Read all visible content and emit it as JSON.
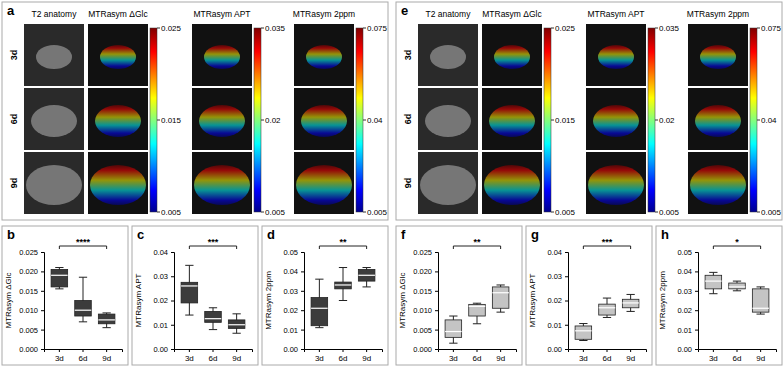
{
  "image_panels": [
    {
      "label": "a",
      "rows": [
        "3d",
        "6d",
        "9d"
      ],
      "columns": [
        {
          "title": "T2 anatomy"
        },
        {
          "title": "MTRasym ΔGlc",
          "colorbar": {
            "min": 0.005,
            "max": 0.025,
            "ticks": [
              0.005,
              0.015,
              0.025
            ]
          }
        },
        {
          "title": "MTRasym APT",
          "colorbar": {
            "min": 0.005,
            "max": 0.035,
            "ticks": [
              0.005,
              0.02,
              0.035
            ]
          }
        },
        {
          "title": "MTRasym 2ppm",
          "colorbar": {
            "min": 0.005,
            "max": 0.075,
            "ticks": [
              0.005,
              0.04,
              0.075
            ]
          }
        }
      ]
    },
    {
      "label": "e",
      "rows": [
        "3d",
        "6d",
        "9d"
      ],
      "columns": [
        {
          "title": "T2 anatomy"
        },
        {
          "title": "MTRasym ΔGlc",
          "colorbar": {
            "min": 0.005,
            "max": 0.025,
            "ticks": [
              0.005,
              0.015,
              0.025
            ]
          }
        },
        {
          "title": "MTRasym APT",
          "colorbar": {
            "min": 0.005,
            "max": 0.035,
            "ticks": [
              0.005,
              0.02,
              0.035
            ]
          }
        },
        {
          "title": "MTRasym 2ppm",
          "colorbar": {
            "min": 0.005,
            "max": 0.075,
            "ticks": [
              0.005,
              0.04,
              0.075
            ]
          }
        }
      ]
    }
  ],
  "chart_data": [
    {
      "type": "box",
      "title": "b",
      "ylabel": "MTRasym ΔGlc",
      "color": "#3c3c3c",
      "categories": [
        "3d",
        "6d",
        "9d"
      ],
      "boxes": [
        {
          "min": 0.0155,
          "q1": 0.016,
          "median": 0.019,
          "q3": 0.0205,
          "max": 0.021
        },
        {
          "min": 0.007,
          "q1": 0.0085,
          "median": 0.01,
          "q3": 0.0125,
          "max": 0.0185
        },
        {
          "min": 0.0055,
          "q1": 0.0065,
          "median": 0.0075,
          "q3": 0.009,
          "max": 0.0093
        }
      ],
      "ylim": [
        0,
        0.025
      ],
      "yticks": [
        {
          "value": 0,
          "label": "0.000"
        },
        0.005,
        {
          "value": 0.01,
          "label": "0.010"
        },
        0.015,
        {
          "value": 0.02,
          "label": "0.020"
        },
        0.025
      ],
      "significance": {
        "from": "3d",
        "to": "9d",
        "label": "****"
      }
    },
    {
      "type": "box",
      "title": "c",
      "ylabel": "MTRasym APT",
      "color": "#3c3c3c",
      "categories": [
        "3d",
        "6d",
        "9d"
      ],
      "boxes": [
        {
          "min": 0.014,
          "q1": 0.019,
          "median": 0.026,
          "q3": 0.0275,
          "max": 0.0345
        },
        {
          "min": 0.008,
          "q1": 0.011,
          "median": 0.0125,
          "q3": 0.0155,
          "max": 0.017
        },
        {
          "min": 0.0065,
          "q1": 0.0085,
          "median": 0.01,
          "q3": 0.012,
          "max": 0.0145
        }
      ],
      "ylim": [
        0,
        0.04
      ],
      "yticks": [
        {
          "value": 0,
          "label": "0.00"
        },
        0.01,
        0.02,
        0.03,
        0.04
      ],
      "significance": {
        "from": "3d",
        "to": "9d",
        "label": "***"
      }
    },
    {
      "type": "box",
      "title": "d",
      "ylabel": "MTRasym 2ppm",
      "color": "#3c3c3c",
      "categories": [
        "3d",
        "6d",
        "9d"
      ],
      "boxes": [
        {
          "min": 0.011,
          "q1": 0.012,
          "median": 0.021,
          "q3": 0.0265,
          "max": 0.036
        },
        {
          "min": 0.025,
          "q1": 0.031,
          "median": 0.033,
          "q3": 0.0345,
          "max": 0.042
        },
        {
          "min": 0.032,
          "q1": 0.035,
          "median": 0.038,
          "q3": 0.041,
          "max": 0.042
        }
      ],
      "ylim": [
        0,
        0.05
      ],
      "yticks": [
        {
          "value": 0,
          "label": "0.00"
        },
        0.01,
        0.02,
        0.03,
        0.04,
        0.05
      ],
      "significance": {
        "from": "3d",
        "to": "9d",
        "label": "**"
      }
    },
    {
      "type": "box",
      "title": "f",
      "ylabel": "MTRasym ΔGlc",
      "color": "#c4c4c4",
      "categories": [
        "3d",
        "6d",
        "9d"
      ],
      "boxes": [
        {
          "min": 0.0015,
          "q1": 0.003,
          "median": 0.0045,
          "q3": 0.0075,
          "max": 0.0085
        },
        {
          "min": 0.0065,
          "q1": 0.0085,
          "median": 0.011,
          "q3": 0.0115,
          "max": 0.0118
        },
        {
          "min": 0.0095,
          "q1": 0.0105,
          "median": 0.0145,
          "q3": 0.016,
          "max": 0.0165
        }
      ],
      "ylim": [
        0,
        0.025
      ],
      "yticks": [
        {
          "value": 0,
          "label": "0.000"
        },
        0.005,
        {
          "value": 0.01,
          "label": "0.010"
        },
        0.015,
        {
          "value": 0.02,
          "label": "0.020"
        },
        0.025
      ],
      "significance": {
        "from": "3d",
        "to": "9d",
        "label": "**"
      }
    },
    {
      "type": "box",
      "title": "g",
      "ylabel": "MTRasym APT",
      "color": "#c4c4c4",
      "categories": [
        "3d",
        "6d",
        "9d"
      ],
      "boxes": [
        {
          "min": 0.0035,
          "q1": 0.004,
          "median": 0.0075,
          "q3": 0.0095,
          "max": 0.0105
        },
        {
          "min": 0.013,
          "q1": 0.014,
          "median": 0.017,
          "q3": 0.0185,
          "max": 0.021
        },
        {
          "min": 0.0155,
          "q1": 0.017,
          "median": 0.019,
          "q3": 0.0205,
          "max": 0.0225
        }
      ],
      "ylim": [
        0,
        0.04
      ],
      "yticks": [
        {
          "value": 0,
          "label": "0.00"
        },
        0.01,
        0.02,
        0.03,
        0.04
      ],
      "significance": {
        "from": "3d",
        "to": "9d",
        "label": "***"
      }
    },
    {
      "type": "box",
      "title": "h",
      "ylabel": "MTRasym 2ppm",
      "color": "#c4c4c4",
      "categories": [
        "3d",
        "6d",
        "9d"
      ],
      "boxes": [
        {
          "min": 0.0285,
          "q1": 0.031,
          "median": 0.035,
          "q3": 0.038,
          "max": 0.0395
        },
        {
          "min": 0.03,
          "q1": 0.031,
          "median": 0.032,
          "q3": 0.034,
          "max": 0.035
        },
        {
          "min": 0.018,
          "q1": 0.019,
          "median": 0.021,
          "q3": 0.031,
          "max": 0.032
        }
      ],
      "ylim": [
        0,
        0.05
      ],
      "yticks": [
        {
          "value": 0,
          "label": "0.00"
        },
        0.01,
        0.02,
        0.03,
        0.04,
        0.05
      ],
      "significance": {
        "from": "3d",
        "to": "9d",
        "label": "*"
      }
    }
  ]
}
